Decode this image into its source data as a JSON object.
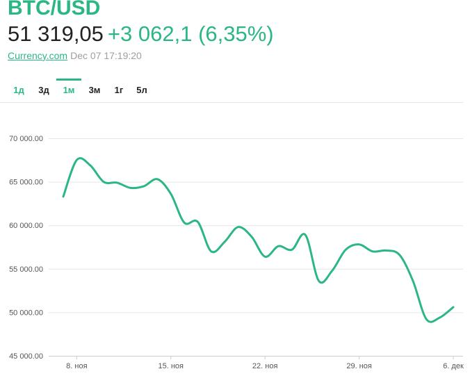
{
  "header": {
    "pair": "BTC/USD",
    "price": "51 319,05",
    "change": "+3 062,1 (6,35%)",
    "source": "Currency.com",
    "timestamp": "Dec 07 17:19:20"
  },
  "colors": {
    "accent": "#2bb783",
    "text": "#222222",
    "muted": "#9e9e9e",
    "grid": "#e6e6e6"
  },
  "tabs": [
    {
      "label": "1д",
      "active": false,
      "accent": true
    },
    {
      "label": "3д",
      "active": false,
      "accent": false
    },
    {
      "label": "1м",
      "active": true,
      "accent": true
    },
    {
      "label": "3м",
      "active": false,
      "accent": false
    },
    {
      "label": "1г",
      "active": false,
      "accent": false
    },
    {
      "label": "5л",
      "active": false,
      "accent": false
    }
  ],
  "chart_data": {
    "type": "line",
    "ylim": [
      45000,
      70000
    ],
    "y_ticks": [
      70000,
      65000,
      60000,
      55000,
      50000,
      45000
    ],
    "y_tick_labels": [
      "70 000.00",
      "65 000.00",
      "60 000.00",
      "55 000.00",
      "50 000.00",
      "45 000.00"
    ],
    "x_ticks": [
      "2021-11-08",
      "2021-11-15",
      "2021-11-22",
      "2021-11-29",
      "2021-12-06"
    ],
    "x_tick_labels": [
      "8. ноя",
      "15. ноя",
      "22. ноя",
      "29. ноя",
      "6. дек"
    ],
    "grid": true,
    "series": [
      {
        "values": [
          {
            "x": "2021-11-07",
            "y": 63300
          },
          {
            "x": "2021-11-08",
            "y": 67500
          },
          {
            "x": "2021-11-09",
            "y": 66900
          },
          {
            "x": "2021-11-10",
            "y": 65000
          },
          {
            "x": "2021-11-11",
            "y": 64900
          },
          {
            "x": "2021-11-12",
            "y": 64300
          },
          {
            "x": "2021-11-13",
            "y": 64500
          },
          {
            "x": "2021-11-14",
            "y": 65300
          },
          {
            "x": "2021-11-15",
            "y": 63600
          },
          {
            "x": "2021-11-16",
            "y": 60300
          },
          {
            "x": "2021-11-17",
            "y": 60400
          },
          {
            "x": "2021-11-18",
            "y": 57000
          },
          {
            "x": "2021-11-19",
            "y": 58100
          },
          {
            "x": "2021-11-20",
            "y": 59800
          },
          {
            "x": "2021-11-21",
            "y": 58700
          },
          {
            "x": "2021-11-22",
            "y": 56400
          },
          {
            "x": "2021-11-23",
            "y": 57600
          },
          {
            "x": "2021-11-24",
            "y": 57200
          },
          {
            "x": "2021-11-25",
            "y": 58900
          },
          {
            "x": "2021-11-26",
            "y": 53600
          },
          {
            "x": "2021-11-27",
            "y": 54800
          },
          {
            "x": "2021-11-28",
            "y": 57200
          },
          {
            "x": "2021-11-29",
            "y": 57800
          },
          {
            "x": "2021-11-30",
            "y": 57000
          },
          {
            "x": "2021-12-01",
            "y": 57100
          },
          {
            "x": "2021-12-02",
            "y": 56600
          },
          {
            "x": "2021-12-03",
            "y": 53600
          },
          {
            "x": "2021-12-04",
            "y": 49200
          },
          {
            "x": "2021-12-05",
            "y": 49400
          },
          {
            "x": "2021-12-06",
            "y": 50600
          }
        ]
      }
    ]
  }
}
